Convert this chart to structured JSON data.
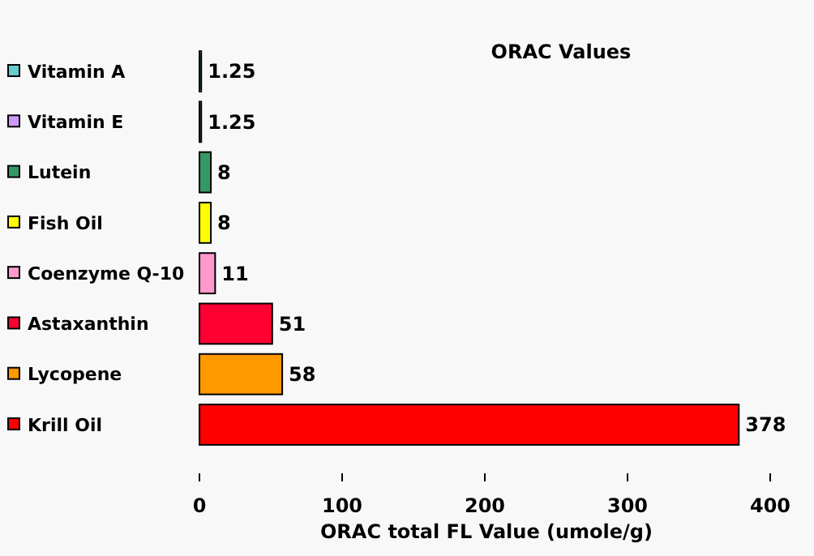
{
  "chart_data": {
    "type": "bar",
    "orientation": "horizontal",
    "title": "ORAC Values",
    "xlabel": "ORAC total FL Value (umole/g)",
    "categories": [
      "Vitamin A",
      "Vitamin E",
      "Lutein",
      "Fish Oil",
      "Coenzyme Q-10",
      "Astaxanthin",
      "Lycopene",
      "Krill Oil"
    ],
    "values": [
      1.25,
      1.25,
      8,
      8,
      11,
      51,
      58,
      378
    ],
    "colors": [
      "#66cccc",
      "#cc99ff",
      "#339966",
      "#ffff00",
      "#ff99cc",
      "#ff0033",
      "#ff9900",
      "#ff0000"
    ],
    "xlim": [
      0,
      400
    ],
    "xticks": [
      0,
      100,
      200,
      300,
      400
    ],
    "data_labels": true,
    "grid": false
  }
}
